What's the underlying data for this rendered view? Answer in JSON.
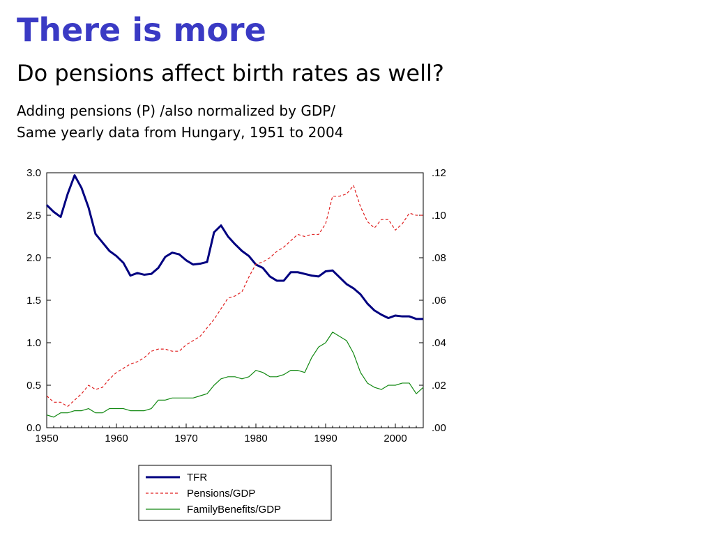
{
  "slide": {
    "title": "There is more",
    "subtitle": "Do pensions affect birth rates as well?",
    "notes": [
      "Adding pensions (P) /also normalized by GDP/",
      "Same yearly data from Hungary, 1951 to 2004"
    ]
  },
  "chart_data": {
    "type": "line",
    "title": "",
    "xlabel": "",
    "ylabel": "",
    "xlim": [
      1950,
      2004
    ],
    "x_ticks": [
      1950,
      1960,
      1970,
      1980,
      1990,
      2000
    ],
    "x_tick_labels": [
      "1950",
      "1960",
      "1970",
      "1980",
      "1990",
      "2000"
    ],
    "y_left": {
      "lim": [
        0,
        3
      ],
      "ticks": [
        0,
        0.5,
        1,
        1.5,
        2,
        2.5,
        3
      ],
      "tick_labels": [
        "0.0",
        "0.5",
        "1.0",
        "1.5",
        "2.0",
        "2.5",
        "3.0"
      ]
    },
    "y_right": {
      "lim": [
        0,
        0.12
      ],
      "ticks": [
        0,
        0.02,
        0.04,
        0.06,
        0.08,
        0.1,
        0.12
      ],
      "tick_labels": [
        ".00",
        ".02",
        ".04",
        ".06",
        ".08",
        ".10",
        ".12"
      ]
    },
    "grid": false,
    "legend_position": "bottom-center",
    "x": [
      1950,
      1951,
      1952,
      1953,
      1954,
      1955,
      1956,
      1957,
      1958,
      1959,
      1960,
      1961,
      1962,
      1963,
      1964,
      1965,
      1966,
      1967,
      1968,
      1969,
      1970,
      1971,
      1972,
      1973,
      1974,
      1975,
      1976,
      1977,
      1978,
      1979,
      1980,
      1981,
      1982,
      1983,
      1984,
      1985,
      1986,
      1987,
      1988,
      1989,
      1990,
      1991,
      1992,
      1993,
      1994,
      1995,
      1996,
      1997,
      1998,
      1999,
      2000,
      2001,
      2002,
      2003,
      2004
    ],
    "series": [
      {
        "name": "TFR",
        "axis": "left",
        "color": "#000080",
        "style": "solid-thick",
        "values": [
          2.62,
          2.54,
          2.48,
          2.75,
          2.97,
          2.82,
          2.59,
          2.28,
          2.18,
          2.08,
          2.02,
          1.94,
          1.79,
          1.82,
          1.8,
          1.81,
          1.88,
          2.01,
          2.06,
          2.04,
          1.97,
          1.92,
          1.93,
          1.95,
          2.3,
          2.38,
          2.25,
          2.16,
          2.08,
          2.02,
          1.92,
          1.88,
          1.78,
          1.73,
          1.73,
          1.83,
          1.83,
          1.81,
          1.79,
          1.78,
          1.84,
          1.85,
          1.77,
          1.69,
          1.64,
          1.57,
          1.46,
          1.38,
          1.33,
          1.29,
          1.32,
          1.31,
          1.31,
          1.28,
          1.28
        ]
      },
      {
        "name": "Pensions/GDP",
        "axis": "right",
        "color": "#e02020",
        "style": "dashed",
        "values": [
          0.015,
          0.012,
          0.012,
          0.01,
          0.013,
          0.016,
          0.02,
          0.018,
          0.019,
          0.023,
          0.026,
          0.028,
          0.03,
          0.031,
          0.033,
          0.036,
          0.037,
          0.037,
          0.036,
          0.036,
          0.039,
          0.041,
          0.043,
          0.047,
          0.051,
          0.056,
          0.061,
          0.062,
          0.064,
          0.071,
          0.077,
          0.078,
          0.08,
          0.083,
          0.085,
          0.088,
          0.091,
          0.09,
          0.091,
          0.091,
          0.096,
          0.109,
          0.109,
          0.11,
          0.114,
          0.104,
          0.097,
          0.094,
          0.098,
          0.098,
          0.093,
          0.096,
          0.101,
          0.1,
          0.1
        ]
      },
      {
        "name": "FamilyBenefits/GDP",
        "axis": "right",
        "color": "#118811",
        "style": "solid-thin",
        "values": [
          0.006,
          0.005,
          0.007,
          0.007,
          0.008,
          0.008,
          0.009,
          0.007,
          0.007,
          0.009,
          0.009,
          0.009,
          0.008,
          0.008,
          0.008,
          0.009,
          0.013,
          0.013,
          0.014,
          0.014,
          0.014,
          0.014,
          0.015,
          0.016,
          0.02,
          0.023,
          0.024,
          0.024,
          0.023,
          0.024,
          0.027,
          0.026,
          0.024,
          0.024,
          0.025,
          0.027,
          0.027,
          0.026,
          0.033,
          0.038,
          0.04,
          0.045,
          0.043,
          0.041,
          0.035,
          0.026,
          0.021,
          0.019,
          0.018,
          0.02,
          0.02,
          0.021,
          0.021,
          0.016,
          0.019
        ]
      }
    ]
  }
}
